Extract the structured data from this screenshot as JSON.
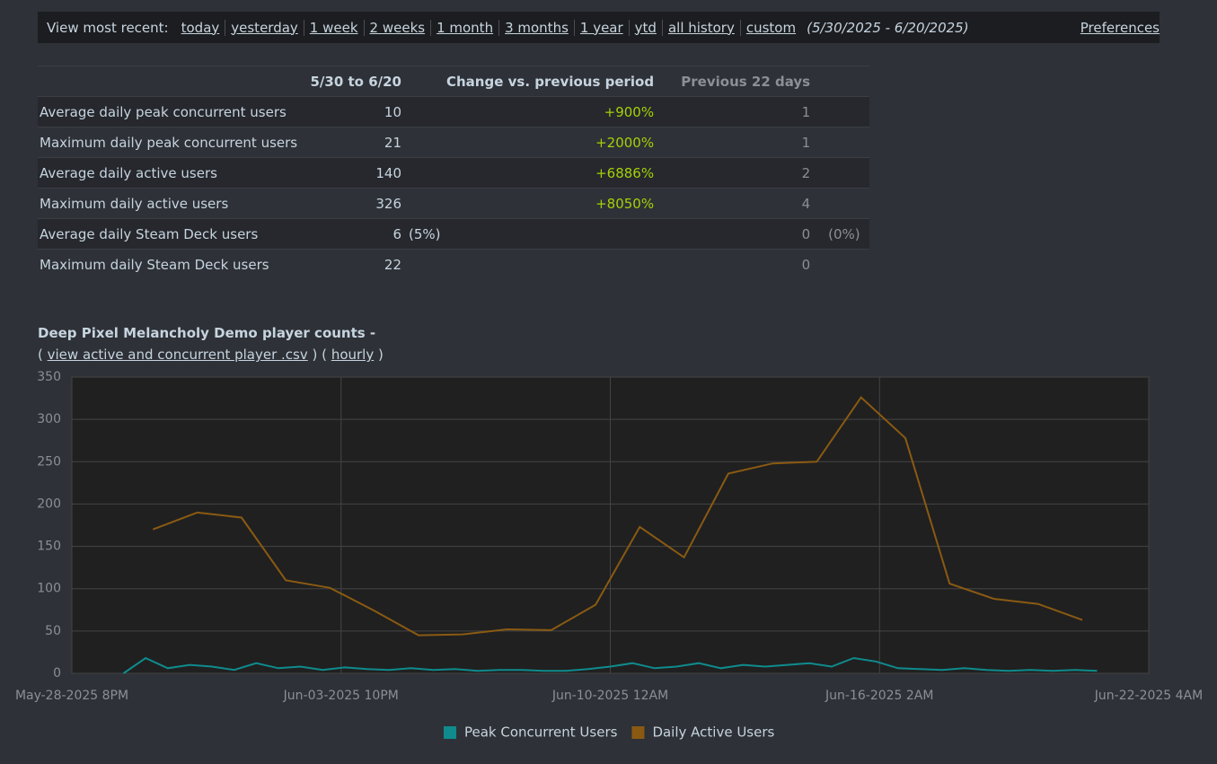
{
  "nav": {
    "label": "View most recent:",
    "links": [
      "today",
      "yesterday",
      "1 week",
      "2 weeks",
      "1 month",
      "3 months",
      "1 year",
      "ytd",
      "all history",
      "custom"
    ],
    "range": "(5/30/2025 - 6/20/2025)",
    "preferences": "Preferences"
  },
  "table": {
    "headers": [
      "5/30 to 6/20",
      "Change vs. previous period",
      "Previous 22 days"
    ],
    "rows": [
      {
        "label": "Average daily peak concurrent users",
        "current": 10,
        "change": "+900%",
        "previous": 1
      },
      {
        "label": "Maximum daily peak concurrent users",
        "current": 21,
        "change": "+2000%",
        "previous": 1
      },
      {
        "label": "Average daily active users",
        "current": 140,
        "change": "+6886%",
        "previous": 2
      },
      {
        "label": "Maximum daily active users",
        "current": 326,
        "change": "+8050%",
        "previous": 4
      },
      {
        "label": "Average daily Steam Deck users",
        "current": 6,
        "current_share": "(5%)",
        "previous": 0,
        "previous_share": "(0%)"
      },
      {
        "label": "Maximum daily Steam Deck users",
        "current": 22,
        "previous": 0
      }
    ]
  },
  "chart_data": {
    "type": "line",
    "title": "Deep Pixel Melancholy Demo player counts -",
    "links": [
      {
        "open": "(",
        "text": "view active and concurrent player .csv",
        "close": ")"
      },
      {
        "open": "(",
        "text": "hourly",
        "close": ")"
      }
    ],
    "xlim": [
      "2025-05-28T20:00",
      "2025-06-22T04:00"
    ],
    "xticks": [
      {
        "value": "2025-05-28T20:00",
        "label": "May-28-2025 8PM"
      },
      {
        "value": "2025-06-03T22:00",
        "label": "Jun-03-2025 10PM"
      },
      {
        "value": "2025-06-10T00:00",
        "label": "Jun-10-2025 12AM"
      },
      {
        "value": "2025-06-16T02:00",
        "label": "Jun-16-2025 2AM"
      },
      {
        "value": "2025-06-22T04:00",
        "label": "Jun-22-2025 4AM"
      }
    ],
    "ylim": [
      0,
      350
    ],
    "yticks": [
      0,
      50,
      100,
      150,
      200,
      250,
      300,
      350
    ],
    "grid": true,
    "series": [
      {
        "name": "Peak Concurrent Users",
        "color": "#0f8b8d",
        "x": [
          "2025-05-30T00:00",
          "2025-05-30T12:00",
          "2025-05-31T00:00",
          "2025-05-31T12:00",
          "2025-06-01T00:00",
          "2025-06-01T12:00",
          "2025-06-02T00:00",
          "2025-06-02T12:00",
          "2025-06-03T00:00",
          "2025-06-03T12:00",
          "2025-06-04T00:00",
          "2025-06-04T12:00",
          "2025-06-05T00:00",
          "2025-06-05T12:00",
          "2025-06-06T00:00",
          "2025-06-06T12:00",
          "2025-06-07T00:00",
          "2025-06-07T12:00",
          "2025-06-08T00:00",
          "2025-06-08T12:00",
          "2025-06-09T00:00",
          "2025-06-09T12:00",
          "2025-06-10T00:00",
          "2025-06-10T12:00",
          "2025-06-11T00:00",
          "2025-06-11T12:00",
          "2025-06-12T00:00",
          "2025-06-12T12:00",
          "2025-06-13T00:00",
          "2025-06-13T12:00",
          "2025-06-14T00:00",
          "2025-06-14T12:00",
          "2025-06-15T00:00",
          "2025-06-15T12:00",
          "2025-06-16T00:00",
          "2025-06-16T12:00",
          "2025-06-17T00:00",
          "2025-06-17T12:00",
          "2025-06-18T00:00",
          "2025-06-18T12:00",
          "2025-06-19T00:00",
          "2025-06-19T12:00",
          "2025-06-20T00:00",
          "2025-06-20T12:00",
          "2025-06-21T00:00"
        ],
        "values": [
          0,
          18,
          6,
          10,
          8,
          4,
          12,
          6,
          8,
          4,
          7,
          5,
          4,
          6,
          4,
          5,
          3,
          4,
          4,
          3,
          3,
          5,
          8,
          12,
          6,
          8,
          12,
          6,
          10,
          8,
          10,
          12,
          8,
          18,
          14,
          6,
          5,
          4,
          6,
          4,
          3,
          4,
          3,
          4,
          3
        ]
      },
      {
        "name": "Daily Active Users",
        "color": "#8a5a12",
        "x": [
          "2025-05-30T16:00",
          "2025-05-31T16:00",
          "2025-06-01T16:00",
          "2025-06-02T16:00",
          "2025-06-03T16:00",
          "2025-06-04T16:00",
          "2025-06-05T16:00",
          "2025-06-06T16:00",
          "2025-06-07T16:00",
          "2025-06-08T16:00",
          "2025-06-09T16:00",
          "2025-06-10T16:00",
          "2025-06-11T16:00",
          "2025-06-12T16:00",
          "2025-06-13T16:00",
          "2025-06-14T16:00",
          "2025-06-15T16:00",
          "2025-06-16T16:00",
          "2025-06-17T16:00",
          "2025-06-18T16:00",
          "2025-06-19T16:00",
          "2025-06-20T16:00"
        ],
        "values": [
          170,
          190,
          184,
          110,
          101,
          74,
          45,
          46,
          52,
          51,
          81,
          173,
          137,
          236,
          248,
          250,
          326,
          278,
          106,
          88,
          82,
          63
        ]
      }
    ]
  }
}
